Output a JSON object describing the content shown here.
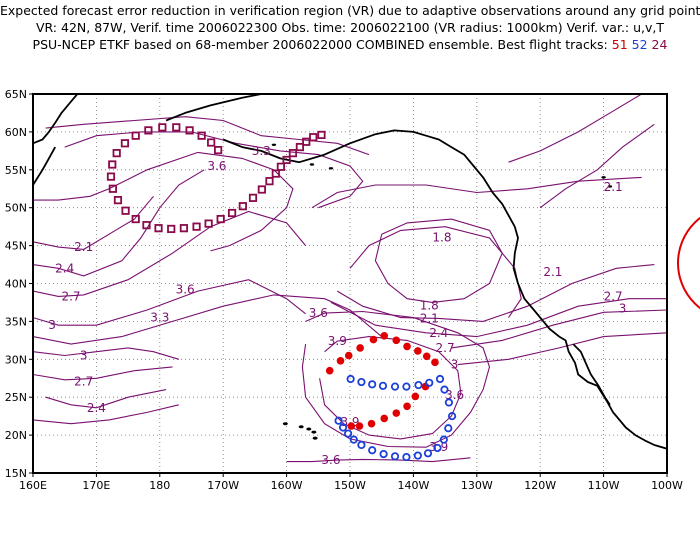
{
  "header": {
    "line1": "Expected forecast error reduction in verification region (VR) due to adaptive observations around any grid point.",
    "line2": "VR: 42N, 87W, Verif. time 2006022300   Obs. time: 2006022100 (VR radius: 1000km)    Verif. var.: u,v,T",
    "line3_text": "PSU-NCEP ETKF based on 68-member 2006022000 COMBINED ensemble.   Best flight tracks:",
    "track_red": "51",
    "track_blue": "52",
    "track_purple": "24"
  },
  "map": {
    "lon_range": [
      160,
      260
    ],
    "lat_range": [
      15,
      65
    ],
    "lon_ticks": [
      "160E",
      "170E",
      "180",
      "170W",
      "160W",
      "150W",
      "140W",
      "130W",
      "120W",
      "110W",
      "100W"
    ],
    "lat_ticks": [
      "15N",
      "20N",
      "25N",
      "30N",
      "35N",
      "40N",
      "45N",
      "50N",
      "55N",
      "60N",
      "65N"
    ],
    "contour_labels": [
      {
        "text": "3.3",
        "lon": 196,
        "lat": 57.5
      },
      {
        "text": "3.6",
        "lon": 189,
        "lat": 55.5
      },
      {
        "text": "2.1",
        "lon": 168,
        "lat": 44.8
      },
      {
        "text": "2.4",
        "lon": 165,
        "lat": 42
      },
      {
        "text": "2.7",
        "lon": 166,
        "lat": 38.3
      },
      {
        "text": "3",
        "lon": 163,
        "lat": 34.5
      },
      {
        "text": "3.3",
        "lon": 180,
        "lat": 35.5
      },
      {
        "text": "3.6",
        "lon": 184,
        "lat": 39.2
      },
      {
        "text": "3",
        "lon": 168,
        "lat": 30.5
      },
      {
        "text": "2.7",
        "lon": 168,
        "lat": 27.1
      },
      {
        "text": "2.4",
        "lon": 170,
        "lat": 23.6
      },
      {
        "text": "3.6",
        "lon": 205,
        "lat": 36.1
      },
      {
        "text": "3.9",
        "lon": 208,
        "lat": 32.4
      },
      {
        "text": "3.9",
        "lon": 210,
        "lat": 21.7
      },
      {
        "text": "3.9",
        "lon": 224,
        "lat": 18.4
      },
      {
        "text": "3.6",
        "lon": 207,
        "lat": 16.7
      },
      {
        "text": "1.8",
        "lon": 224.5,
        "lat": 46.1
      },
      {
        "text": "1.8",
        "lon": 222.5,
        "lat": 37.1
      },
      {
        "text": "2.1",
        "lon": 222.5,
        "lat": 35.4
      },
      {
        "text": "2.4",
        "lon": 224,
        "lat": 33.5
      },
      {
        "text": "2.7",
        "lon": 225,
        "lat": 31.5
      },
      {
        "text": "3",
        "lon": 226.5,
        "lat": 29.3
      },
      {
        "text": "3.6",
        "lon": 226.5,
        "lat": 25.3
      },
      {
        "text": "2.1",
        "lon": 242,
        "lat": 41.5
      },
      {
        "text": "2.7",
        "lon": 251.5,
        "lat": 38.3
      },
      {
        "text": "3",
        "lon": 253,
        "lat": 36.7
      },
      {
        "text": "2.1",
        "lon": 251.5,
        "lat": 52.7
      }
    ],
    "track_red_points": [
      [
        206.8,
        28.5
      ],
      [
        208.5,
        29.8
      ],
      [
        209.8,
        30.5
      ],
      [
        211.6,
        31.5
      ],
      [
        213.7,
        32.6
      ],
      [
        215.4,
        33.1
      ],
      [
        217.3,
        32.5
      ],
      [
        219,
        31.7
      ],
      [
        220.7,
        31.1
      ],
      [
        222.1,
        30.4
      ],
      [
        223.4,
        29.6
      ],
      [
        221.9,
        26.4
      ],
      [
        220.3,
        25.1
      ],
      [
        219,
        23.8
      ],
      [
        217.3,
        22.9
      ],
      [
        215.4,
        22.2
      ],
      [
        213.4,
        21.5
      ],
      [
        211.5,
        21.2
      ],
      [
        210.2,
        21.2
      ]
    ],
    "track_blue_points": [
      [
        210.1,
        27.4
      ],
      [
        211.8,
        27
      ],
      [
        213.5,
        26.7
      ],
      [
        215.2,
        26.5
      ],
      [
        217.1,
        26.4
      ],
      [
        218.9,
        26.4
      ],
      [
        220.8,
        26.6
      ],
      [
        222.5,
        26.9
      ],
      [
        224.2,
        27.4
      ],
      [
        224.9,
        26
      ],
      [
        225.6,
        24.3
      ],
      [
        226.1,
        22.5
      ],
      [
        225.5,
        20.9
      ],
      [
        224.8,
        19.4
      ],
      [
        223.8,
        18.3
      ],
      [
        222.3,
        17.6
      ],
      [
        220.7,
        17.3
      ],
      [
        218.9,
        17.1
      ],
      [
        217.1,
        17.2
      ],
      [
        215.3,
        17.5
      ],
      [
        213.5,
        18
      ],
      [
        211.8,
        18.7
      ],
      [
        210.6,
        19.4
      ],
      [
        209.7,
        20.2
      ],
      [
        208.9,
        21
      ],
      [
        208.2,
        21.9
      ]
    ],
    "track_purple_points": [
      [
        205.5,
        59.6
      ],
      [
        204.2,
        59.3
      ],
      [
        203.1,
        58.7
      ],
      [
        202.1,
        58
      ],
      [
        201,
        57.2
      ],
      [
        200,
        56.3
      ],
      [
        199.1,
        55.4
      ],
      [
        198.3,
        54.5
      ],
      [
        197.3,
        53.5
      ],
      [
        196.1,
        52.4
      ],
      [
        194.7,
        51.3
      ],
      [
        193.1,
        50.2
      ],
      [
        191.4,
        49.3
      ],
      [
        189.6,
        48.5
      ],
      [
        187.7,
        47.9
      ],
      [
        185.8,
        47.5
      ],
      [
        183.8,
        47.3
      ],
      [
        181.8,
        47.2
      ],
      [
        179.8,
        47.3
      ],
      [
        177.9,
        47.7
      ],
      [
        176.2,
        48.5
      ],
      [
        174.6,
        49.6
      ],
      [
        173.4,
        51
      ],
      [
        172.6,
        52.5
      ],
      [
        172.3,
        54.1
      ],
      [
        172.5,
        55.7
      ],
      [
        173.2,
        57.2
      ],
      [
        174.5,
        58.5
      ],
      [
        176.2,
        59.5
      ],
      [
        178.2,
        60.2
      ],
      [
        180.4,
        60.6
      ],
      [
        182.6,
        60.6
      ],
      [
        184.7,
        60.2
      ],
      [
        186.6,
        59.5
      ],
      [
        188.1,
        58.6
      ],
      [
        189.2,
        57.6
      ]
    ]
  },
  "colors": {
    "contour": "#7a1070",
    "coast": "#000000",
    "track_red": "#e00000",
    "track_blue": "#1c3fd8",
    "track_purple": "#8a0a4a",
    "verification_ring": "#e00000"
  }
}
